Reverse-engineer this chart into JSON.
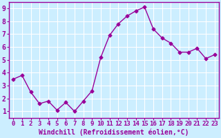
{
  "x": [
    0,
    1,
    2,
    3,
    4,
    5,
    6,
    7,
    8,
    9,
    10,
    11,
    12,
    13,
    14,
    15,
    16,
    17,
    18,
    19,
    20,
    21,
    22,
    23
  ],
  "y": [
    3.5,
    3.8,
    2.5,
    1.6,
    1.8,
    1.1,
    1.7,
    1.0,
    1.8,
    2.6,
    5.2,
    6.9,
    7.8,
    8.4,
    8.8,
    9.1,
    7.4,
    6.7,
    6.3,
    5.6,
    5.6,
    5.9,
    5.1,
    5.4
  ],
  "line_color": "#990099",
  "marker": "D",
  "marker_size": 2.5,
  "line_width": 1.0,
  "xlabel": "Windchill (Refroidissement éolien,°C)",
  "xlabel_fontsize": 7,
  "ylabel_ticks": [
    1,
    2,
    3,
    4,
    5,
    6,
    7,
    8,
    9
  ],
  "xtick_labels": [
    "0",
    "1",
    "2",
    "3",
    "4",
    "5",
    "6",
    "7",
    "8",
    "9",
    "10",
    "11",
    "12",
    "13",
    "14",
    "15",
    "16",
    "17",
    "18",
    "19",
    "20",
    "21",
    "22",
    "23"
  ],
  "xlim": [
    -0.5,
    23.5
  ],
  "ylim": [
    0.5,
    9.5
  ],
  "bg_color": "#cceeff",
  "grid_color": "#ffffff",
  "tick_color": "#990099",
  "tick_fontsize": 6.5,
  "border_color": "#990099"
}
